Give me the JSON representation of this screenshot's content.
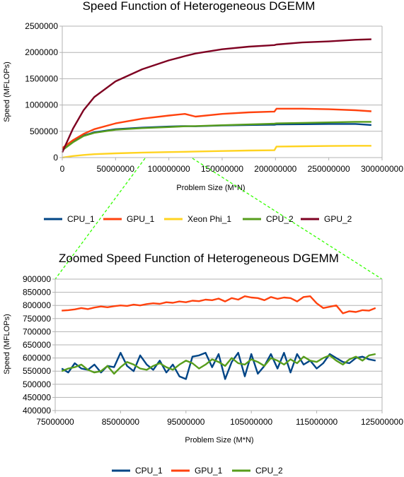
{
  "chart_data": [
    {
      "type": "line",
      "title": "Speed Function of Heterogeneous DGEMM",
      "xlabel": "Problem Size (M*N)",
      "ylabel": "Speed (MFLOPs)",
      "xlim": [
        0,
        300000000
      ],
      "ylim": [
        0,
        2500000
      ],
      "xticks": [
        "0",
        "50000000",
        "100000000",
        "150000000",
        "200000000",
        "250000000",
        "300000000"
      ],
      "yticks": [
        "0",
        "500000",
        "1000000",
        "1500000",
        "2000000",
        "2500000"
      ],
      "legend_position": "bottom",
      "grid": true,
      "x": [
        0,
        10000000,
        20000000,
        30000000,
        50000000,
        75000000,
        100000000,
        115000000,
        125000000,
        150000000,
        175000000,
        199000000,
        201000000,
        225000000,
        250000000,
        275000000,
        290000000
      ],
      "series": [
        {
          "name": "CPU_1",
          "color": "#004586",
          "values": [
            150000,
            300000,
            420000,
            480000,
            540000,
            570000,
            590000,
            600000,
            595000,
            610000,
            620000,
            625000,
            630000,
            635000,
            640000,
            640000,
            620000
          ]
        },
        {
          "name": "GPU_1",
          "color": "#ff420e",
          "values": [
            180000,
            330000,
            450000,
            540000,
            650000,
            740000,
            800000,
            830000,
            780000,
            830000,
            860000,
            875000,
            930000,
            930000,
            920000,
            900000,
            880000
          ]
        },
        {
          "name": "Xeon Phi_1",
          "color": "#ffd320",
          "values": [
            0,
            30000,
            50000,
            65000,
            80000,
            95000,
            105000,
            110000,
            115000,
            125000,
            135000,
            140000,
            210000,
            215000,
            220000,
            225000,
            225000
          ]
        },
        {
          "name": "CPU_2",
          "color": "#579d1c",
          "values": [
            140000,
            290000,
            410000,
            470000,
            530000,
            560000,
            580000,
            595000,
            600000,
            615000,
            630000,
            645000,
            650000,
            660000,
            670000,
            680000,
            680000
          ]
        },
        {
          "name": "GPU_2",
          "color": "#7e0021",
          "values": [
            100000,
            550000,
            900000,
            1150000,
            1450000,
            1680000,
            1850000,
            1930000,
            1980000,
            2060000,
            2110000,
            2140000,
            2150000,
            2190000,
            2210000,
            2240000,
            2250000
          ]
        }
      ]
    },
    {
      "type": "line",
      "title": "Zoomed Speed Function of Heterogeneous DGEMM",
      "xlabel": "Problem Size (M*N)",
      "ylabel": "Speed (MFLOPs)",
      "xlim": [
        75000000,
        125000000
      ],
      "ylim": [
        400000,
        900000
      ],
      "xticks": [
        "75000000",
        "85000000",
        "95000000",
        "105000000",
        "115000000",
        "125000000"
      ],
      "yticks": [
        "400000",
        "450000",
        "500000",
        "550000",
        "600000",
        "650000",
        "700000",
        "750000",
        "800000",
        "850000",
        "900000"
      ],
      "legend_position": "bottom",
      "grid": true,
      "x": [
        76000000,
        77000000,
        78000000,
        79000000,
        80000000,
        81000000,
        82000000,
        83000000,
        84000000,
        85000000,
        86000000,
        87000000,
        88000000,
        89000000,
        90000000,
        91000000,
        92000000,
        93000000,
        94000000,
        95000000,
        96000000,
        97000000,
        98000000,
        99000000,
        100000000,
        101000000,
        102000000,
        103000000,
        104000000,
        105000000,
        106000000,
        107000000,
        108000000,
        109000000,
        110000000,
        111000000,
        112000000,
        113000000,
        114000000,
        115000000,
        116000000,
        117000000,
        118000000,
        119000000,
        120000000,
        121000000,
        122000000,
        123000000,
        124000000
      ],
      "series": [
        {
          "name": "CPU_1",
          "color": "#004586",
          "values": [
            560000,
            545000,
            580000,
            560000,
            555000,
            575000,
            545000,
            570000,
            565000,
            620000,
            570000,
            550000,
            610000,
            575000,
            555000,
            590000,
            545000,
            575000,
            530000,
            520000,
            605000,
            610000,
            620000,
            565000,
            615000,
            520000,
            585000,
            620000,
            530000,
            615000,
            540000,
            570000,
            615000,
            560000,
            620000,
            545000,
            615000,
            575000,
            590000,
            560000,
            580000,
            615000,
            600000,
            585000,
            580000,
            600000,
            605000,
            595000,
            590000
          ]
        },
        {
          "name": "GPU_1",
          "color": "#ff420e",
          "values": [
            780000,
            782000,
            785000,
            790000,
            786000,
            792000,
            796000,
            793000,
            797000,
            800000,
            798000,
            803000,
            800000,
            805000,
            808000,
            806000,
            812000,
            810000,
            815000,
            812000,
            818000,
            816000,
            822000,
            820000,
            826000,
            815000,
            828000,
            822000,
            835000,
            830000,
            828000,
            820000,
            832000,
            825000,
            830000,
            828000,
            815000,
            832000,
            835000,
            808000,
            790000,
            795000,
            800000,
            770000,
            778000,
            775000,
            782000,
            780000,
            790000
          ]
        },
        {
          "name": "CPU_2",
          "color": "#579d1c",
          "values": [
            550000,
            560000,
            565000,
            575000,
            555000,
            545000,
            550000,
            570000,
            540000,
            565000,
            585000,
            575000,
            560000,
            555000,
            570000,
            580000,
            565000,
            555000,
            575000,
            590000,
            580000,
            560000,
            575000,
            595000,
            585000,
            570000,
            600000,
            580000,
            575000,
            595000,
            585000,
            570000,
            600000,
            590000,
            575000,
            595000,
            580000,
            605000,
            590000,
            585000,
            600000,
            610000,
            590000,
            575000,
            595000,
            605000,
            590000,
            610000,
            615000
          ]
        }
      ]
    }
  ]
}
